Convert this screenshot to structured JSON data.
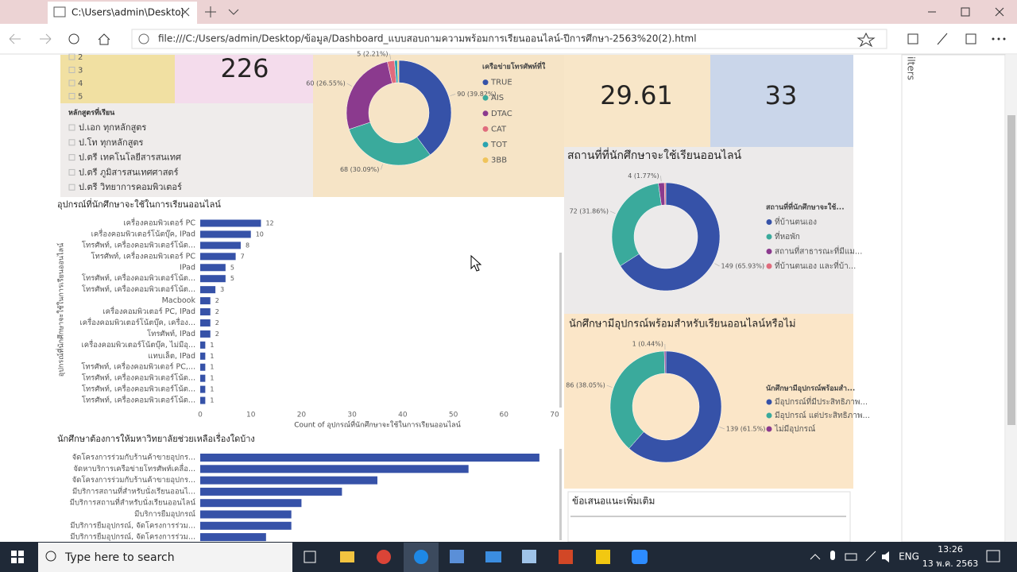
{
  "browser": {
    "tab_title": "C:\\Users\\admin\\Deskto|",
    "url": "file:///C:/Users/admin/Desktop/ข้อมูล/Dashboard_แบบสอบถามความพร้อมการเรียนออนไลน์-ปีการศึกษา-2563%20(2).html"
  },
  "slicers": {
    "year_items": [
      "2",
      "3",
      "4",
      "5"
    ],
    "curriculum_title": "หลักสูตรที่เรียน",
    "curriculum_items": [
      "ป.เอก ทุกหลักสูตร",
      "ป.โท ทุกหลักสูตร",
      "ป.ตรี เทคโนโลยีสารสนเทศ",
      "ป.ตรี ภูมิสารสนเทศศาสตร์",
      "ป.ตรี วิทยาการคอมพิวเตอร์"
    ]
  },
  "cards": [
    226,
    29.61,
    33
  ],
  "chart_data": [
    {
      "type": "donut",
      "legend_title": "เครือข่ายโทรศัพท์ที่ใ",
      "categories": [
        "TRUE",
        "AIS",
        "DTAC",
        "CAT",
        "TOT",
        "3BB"
      ],
      "values": [
        90,
        68,
        60,
        5,
        2,
        1
      ],
      "value_labels": [
        "90 (39.82%)",
        "68 (30.09%)",
        "60 (26.55%)",
        "5 (2.21%)",
        null,
        null
      ],
      "colors": [
        "#3652a8",
        "#3aaa9c",
        "#8b3a8e",
        "#e06c7d",
        "#2aa3b0",
        "#f0c45a"
      ]
    },
    {
      "type": "donut",
      "title": "สถานที่ที่นักศึกษาจะใช้เรียนออนไลน์",
      "legend_title": "สถานที่ที่นักศึกษาจะใช้...",
      "categories": [
        "ที่บ้านตนเอง",
        "ที่หอพัก",
        "สถานที่สาธารณะที่มีแม...",
        "ที่บ้านตนเอง และที่บ้า..."
      ],
      "values": [
        149,
        72,
        4,
        1
      ],
      "value_labels": [
        "149 (65.93%)",
        "72 (31.86%)",
        "4 (1.77%)",
        null
      ],
      "colors": [
        "#3652a8",
        "#3aaa9c",
        "#8b3a8e",
        "#e06c7d"
      ]
    },
    {
      "type": "donut",
      "title": "นักศึกษามีอุปกรณ์พร้อมสำหรับเรียนออนไลน์หรือไม่",
      "legend_title": "นักศึกษามีอุปกรณ์พร้อมสำ...",
      "categories": [
        "มีอุปกรณ์ที่มีประสิทธิภาพ...",
        "มีอุปกรณ์ แต่ประสิทธิภาพ...",
        "ไม่มีอุปกรณ์"
      ],
      "values": [
        139,
        86,
        1
      ],
      "value_labels": [
        "139 (61.5%)",
        "86 (38.05%)",
        "1 (0.44%)"
      ],
      "colors": [
        "#3652a8",
        "#3aaa9c",
        "#8b3a8e"
      ]
    },
    {
      "type": "hbar",
      "title": "อุปกรณ์ที่นักศึกษาจะใช้ในการเรียนออนไลน์",
      "y_label": "อุปกรณ์ที่นักศึกษาจะใช้ในการเรียนออนไลน์",
      "x_label": "Count of อุปกรณ์ที่นักศึกษาจะใช้ในการเรียนออนไลน์",
      "categories": [
        "เครื่องคอมพิวเตอร์ PC",
        "เครื่องคอมพิวเตอร์โน้ตบุ๊ค, IPad",
        "โทรศัพท์, เครื่องคอมพิวเตอร์โน้ต...",
        "โทรศัพท์, เครื่องคอมพิวเตอร์ PC",
        "IPad",
        "โทรศัพท์, เครื่องคอมพิวเตอร์โน้ต...",
        "โทรศัพท์, เครื่องคอมพิวเตอร์โน้ต...",
        "Macbook",
        "เครื่องคอมพิวเตอร์ PC, IPad",
        "เครื่องคอมพิวเตอร์โน้ตบุ๊ค, เครื่อง...",
        "โทรศัพท์, IPad",
        "เครื่องคอมพิวเตอร์โน้ตบุ๊ค, ไม่มีอุ...",
        "แทบเล็ต, IPad",
        "โทรศัพท์, เครื่องคอมพิวเตอร์ PC,...",
        "โทรศัพท์, เครื่องคอมพิวเตอร์โน้ต...",
        "โทรศัพท์, เครื่องคอมพิวเตอร์โน้ต...",
        "โทรศัพท์, เครื่องคอมพิวเตอร์โน้ต..."
      ],
      "values": [
        12,
        10,
        8,
        7,
        5,
        5,
        3,
        2,
        2,
        2,
        2,
        1,
        1,
        1,
        1,
        1,
        1
      ],
      "color": "#3652a8",
      "data_labels": true,
      "xlim": [
        0,
        70
      ],
      "xticks": [
        0,
        10,
        20,
        30,
        40,
        50,
        60,
        70
      ]
    },
    {
      "type": "hbar",
      "title": "นักศึกษาต้องการให้มหาวิทยาลัยช่วยเหลือเรื่องใดบ้าง",
      "categories": [
        "จัดโครงการร่วมกับร้านค้าขายอุปกร...",
        "จัดหาบริการเครือข่ายโทรศัพท์เคลื่อ...",
        "จัดโครงการร่วมกับร้านค้าขายอุปกร...",
        "มีบริการสถานที่สำหรับนั่งเรียนออนไ...",
        "มีบริการสถานที่สำหรับนั่งเรียนออนไลน์",
        "มีบริการยืมอุปกรณ์",
        "มีบริการยืมอุปกรณ์, จัดโครงการร่วม...",
        "มีบริการยืมอุปกรณ์, จัดโครงการร่วม..."
      ],
      "values": [
        67,
        53,
        35,
        28,
        20,
        18,
        18,
        13
      ],
      "color": "#3652a8",
      "data_labels": false,
      "xlim": [
        0,
        70
      ]
    }
  ],
  "textbox": {
    "title": "ข้อเสนอแนะเพิ่มเติม"
  },
  "filters_pane": {
    "label": "ilters"
  },
  "taskbar": {
    "search": "Type here to search",
    "language": "ENG",
    "time": "13:26",
    "date": "13 พ.ค. 2563"
  }
}
